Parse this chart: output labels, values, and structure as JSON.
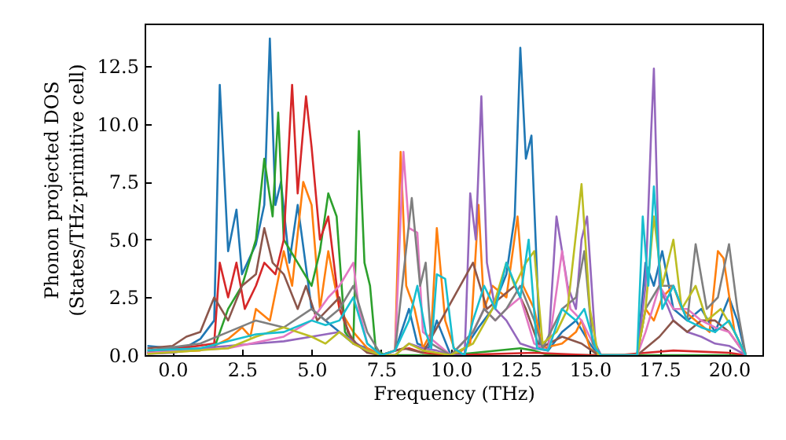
{
  "chart_data": {
    "type": "line",
    "xlabel": "Frequency (THz)",
    "ylabel": "Phonon projected DOS\n(States/THz·primitive cell)",
    "xlim": [
      -1,
      21.2
    ],
    "ylim": [
      0,
      14.35
    ],
    "xticks": [
      {
        "value": 0,
        "label": "0.0"
      },
      {
        "value": 2.5,
        "label": "2.5"
      },
      {
        "value": 5,
        "label": "5.0"
      },
      {
        "value": 7.5,
        "label": "7.5"
      },
      {
        "value": 10,
        "label": "10.0"
      },
      {
        "value": 12.5,
        "label": "12.5"
      },
      {
        "value": 15,
        "label": "15.0"
      },
      {
        "value": 17.5,
        "label": "17.5"
      },
      {
        "value": 20,
        "label": "20.0"
      }
    ],
    "yticks": [
      {
        "value": 0,
        "label": "0.0"
      },
      {
        "value": 2.5,
        "label": "2.5"
      },
      {
        "value": 5,
        "label": "5.0"
      },
      {
        "value": 7.5,
        "label": "7.5"
      },
      {
        "value": 10,
        "label": "10.0"
      },
      {
        "value": 12.5,
        "label": "12.5"
      }
    ],
    "line_style": "solid",
    "series": [
      {
        "color": "#1f77b4",
        "x": [
          -0.9,
          0,
          0.5,
          1,
          1.5,
          1.7,
          2,
          2.3,
          2.5,
          3,
          3.3,
          3.5,
          3.7,
          3.9,
          4.2,
          4.5,
          5,
          5.5,
          6,
          6.5,
          7,
          7.5,
          8,
          8.5,
          8.8,
          9.2,
          9.5,
          10,
          10.5,
          11,
          11.5,
          12,
          12.3,
          12.5,
          12.7,
          12.9,
          13.2,
          13.5,
          14,
          14.5,
          15,
          15.3,
          16.7,
          17,
          17.3,
          17.6,
          18,
          18.5,
          19,
          19.5,
          20,
          20.3,
          20.6
        ],
        "values": [
          0.4,
          0.3,
          0.35,
          0.7,
          1.5,
          11.7,
          4.5,
          6.3,
          3.5,
          4.8,
          6.5,
          13.7,
          6.5,
          7.5,
          4,
          6.5,
          2,
          1.5,
          1,
          0.5,
          0.3,
          0,
          0.2,
          2,
          0.5,
          0.3,
          1.5,
          0,
          0.3,
          1.2,
          2,
          3.5,
          6,
          13.3,
          8.5,
          9.5,
          0.5,
          0.2,
          1,
          1.5,
          0.5,
          0,
          0,
          4,
          3,
          4.5,
          2,
          1.5,
          2,
          1,
          2.5,
          1.5,
          0
        ]
      },
      {
        "color": "#ff7f0e",
        "x": [
          -0.9,
          1,
          1.5,
          2,
          2.5,
          2.8,
          3,
          3.5,
          4,
          4.3,
          4.7,
          5,
          5.3,
          5.6,
          6,
          6.5,
          7,
          7.5,
          8,
          8.2,
          8.4,
          8.7,
          9,
          9.3,
          9.5,
          9.8,
          10.2,
          10.7,
          11,
          11.2,
          11.5,
          12,
          12.4,
          12.6,
          13,
          13.3,
          14,
          14.5,
          14.7,
          15,
          15.3,
          16.7,
          17,
          17.3,
          17.6,
          18,
          18.3,
          18.8,
          19.3,
          19.6,
          19.8,
          20.2,
          20.6
        ],
        "values": [
          0.1,
          0.2,
          0.4,
          0.7,
          1.2,
          0.8,
          2,
          1.5,
          4.5,
          3,
          7.5,
          6.5,
          2,
          4.5,
          2,
          1,
          0.3,
          0,
          0.2,
          8.8,
          3,
          2,
          0.3,
          1,
          5.5,
          1.5,
          0,
          0.5,
          6.5,
          2,
          3,
          2.5,
          6,
          3,
          2,
          0.3,
          0.5,
          1,
          1.5,
          0.3,
          0,
          0,
          2,
          1.5,
          2.5,
          3,
          2,
          1.5,
          1,
          4.5,
          4.2,
          1,
          0
        ]
      },
      {
        "color": "#2ca02c",
        "x": [
          -0.9,
          1.5,
          2,
          2.5,
          3,
          3.3,
          3.6,
          3.8,
          4,
          4.5,
          5,
          5.3,
          5.6,
          5.9,
          6.2,
          6.5,
          6.7,
          6.9,
          7.1,
          7.3,
          7.6,
          10,
          12.5,
          13,
          13.5,
          20.6
        ],
        "values": [
          0.1,
          0.3,
          2,
          3,
          5,
          8.5,
          6,
          10.5,
          5,
          4,
          3,
          4.5,
          7,
          6,
          1,
          0.5,
          9.7,
          4,
          3,
          0.3,
          0,
          0,
          0.3,
          0.2,
          0,
          0
        ]
      },
      {
        "color": "#d62728",
        "x": [
          -0.9,
          1.5,
          1.7,
          2,
          2.3,
          2.6,
          3,
          3.3,
          3.7,
          4,
          4.3,
          4.5,
          4.8,
          5,
          5.3,
          5.6,
          6,
          6.5,
          7,
          7.5,
          8,
          8.5,
          9,
          10,
          13,
          15,
          16,
          17,
          18,
          20,
          20.6
        ],
        "values": [
          0.1,
          0.5,
          4,
          2.5,
          4,
          2,
          3,
          4,
          3.5,
          5,
          11.7,
          7,
          11.2,
          9,
          5,
          6,
          2,
          0.5,
          0.2,
          0,
          0.2,
          0.3,
          0.1,
          0,
          0.1,
          0,
          0,
          0.1,
          0.2,
          0.1,
          0
        ]
      },
      {
        "color": "#9467bd",
        "x": [
          -0.9,
          0,
          1,
          2,
          3,
          4,
          5,
          6,
          6.5,
          7,
          7.5,
          8,
          8.5,
          9,
          9.5,
          10,
          10.5,
          10.7,
          10.9,
          11.1,
          11.3,
          11.6,
          12,
          12.5,
          13,
          13.5,
          13.8,
          14.2,
          14.5,
          14.7,
          14.9,
          15.2,
          15.4,
          16.7,
          17,
          17.2,
          17.3,
          17.5,
          18,
          18.5,
          19,
          19.5,
          20,
          20.6
        ],
        "values": [
          0.05,
          0.1,
          0.3,
          0.4,
          0.5,
          0.6,
          0.8,
          1,
          0.6,
          0.2,
          0,
          0,
          0.5,
          0.3,
          0.2,
          0,
          0,
          7,
          5,
          11.2,
          4,
          2,
          1.5,
          0.5,
          0.3,
          0.2,
          6,
          3,
          2,
          5,
          6,
          0.5,
          0,
          0,
          3,
          9.6,
          12.4,
          3,
          1.5,
          1,
          0.8,
          0.5,
          0.4,
          0
        ]
      },
      {
        "color": "#8c564b",
        "x": [
          -0.9,
          0,
          0.5,
          1,
          1.5,
          2,
          2.5,
          3,
          3.3,
          3.6,
          4,
          4.5,
          4.8,
          5.2,
          5.6,
          6,
          6.3,
          6.6,
          7,
          7.5,
          8.3,
          9,
          10.8,
          11.3,
          11.8,
          12.3,
          12.7,
          13.2,
          14,
          14.7,
          15.3,
          16.7,
          17,
          17.5,
          18,
          18.5,
          19,
          19.5,
          20,
          20.6
        ],
        "values": [
          0.3,
          0.4,
          0.8,
          1,
          2.5,
          1.5,
          3,
          3.5,
          5.5,
          4,
          3.5,
          2,
          3,
          1.5,
          2,
          2.5,
          1,
          0.5,
          0.1,
          0,
          0.3,
          0.1,
          4,
          2,
          2.5,
          3,
          2,
          0.3,
          0.8,
          0.5,
          0,
          0,
          0.3,
          0.8,
          1.5,
          1,
          1.5,
          1.5,
          1,
          0
        ]
      },
      {
        "color": "#e377c2",
        "x": [
          -0.9,
          2,
          4,
          5,
          5.6,
          6,
          6.5,
          6.7,
          7,
          7.5,
          8,
          8.3,
          8.5,
          8.8,
          9,
          9.5,
          10,
          10.8,
          11.2,
          11.6,
          12,
          12.5,
          13,
          13.5,
          14,
          14.3,
          14.7,
          15.2,
          15.4,
          16.7,
          17,
          17.5,
          18,
          18.5,
          19,
          19.5,
          20,
          20.6
        ],
        "values": [
          0.1,
          0.3,
          0.8,
          1.5,
          2.5,
          3,
          4,
          2,
          0.5,
          0,
          0.2,
          8.8,
          5.5,
          5.3,
          1,
          0.5,
          0,
          1,
          2,
          1.5,
          2,
          2.5,
          0.5,
          0.2,
          4.5,
          2,
          1.5,
          0.3,
          0,
          0,
          1,
          3,
          2,
          2,
          1.5,
          1.2,
          1,
          0
        ]
      },
      {
        "color": "#7f7f7f",
        "x": [
          -0.9,
          1,
          2,
          3,
          4,
          5,
          5.5,
          6,
          6.5,
          7,
          7.5,
          8,
          8.6,
          8.9,
          9.1,
          9.3,
          10,
          10.8,
          11.2,
          11.6,
          12,
          12.5,
          13,
          13.3,
          14,
          14.5,
          14.8,
          15.1,
          15.4,
          16.7,
          17,
          17.5,
          18,
          18.5,
          18.8,
          19.2,
          19.6,
          20,
          20.3,
          20.6
        ],
        "values": [
          0.2,
          0.5,
          1,
          1.5,
          1.2,
          2,
          1.5,
          2,
          3,
          1,
          0,
          0.2,
          6.8,
          3,
          4,
          0.5,
          0,
          1,
          2,
          1.5,
          2,
          3,
          1.5,
          0.3,
          2,
          2.5,
          4.5,
          0.5,
          0,
          0,
          2,
          3,
          3,
          1.5,
          4.8,
          2,
          2.5,
          4.8,
          2,
          0
        ]
      },
      {
        "color": "#bcbd22",
        "x": [
          -0.9,
          2,
          3,
          4,
          5,
          5.5,
          6,
          6.5,
          7,
          7.5,
          8,
          8.5,
          9,
          10,
          10.8,
          11.5,
          12,
          12.3,
          12.7,
          13,
          13.3,
          13.8,
          14.2,
          14.7,
          15,
          15.3,
          16.7,
          17,
          17.3,
          17.6,
          18,
          18.3,
          18.8,
          19.2,
          19.7,
          20.2,
          20.6
        ],
        "values": [
          0.05,
          0.3,
          0.8,
          1.2,
          0.8,
          0.5,
          1,
          0.5,
          0.2,
          0,
          0,
          0.5,
          0.2,
          0,
          0.5,
          2,
          4,
          3,
          4,
          4.5,
          0.5,
          1,
          2,
          7.4,
          2,
          0,
          0,
          2,
          6,
          3,
          5,
          2,
          3,
          1.5,
          2,
          1,
          0
        ]
      },
      {
        "color": "#17becf",
        "x": [
          -0.9,
          1,
          2,
          3,
          4,
          5,
          5.5,
          6,
          6.5,
          7,
          7.5,
          8,
          8.5,
          8.8,
          9.1,
          9.3,
          9.5,
          9.8,
          10.1,
          10.5,
          10.8,
          11.2,
          11.6,
          12,
          12.5,
          12.8,
          13.1,
          13.5,
          14,
          14.5,
          14.8,
          15.2,
          15.4,
          16.7,
          16.9,
          17.1,
          17.3,
          17.6,
          18,
          18.5,
          19,
          19.5,
          20,
          20.6
        ],
        "values": [
          0.2,
          0.3,
          0.6,
          0.9,
          1,
          1.5,
          1.3,
          1.5,
          2.5,
          0.5,
          0,
          0.2,
          1.5,
          3,
          1,
          0.3,
          3.5,
          3.3,
          0.3,
          0,
          1.5,
          3,
          2,
          4,
          2.5,
          5,
          0.3,
          0.2,
          2,
          1.5,
          2,
          0.3,
          0,
          0,
          6,
          3,
          7.3,
          2,
          3,
          1.5,
          1.2,
          1,
          1.5,
          0
        ]
      }
    ]
  }
}
